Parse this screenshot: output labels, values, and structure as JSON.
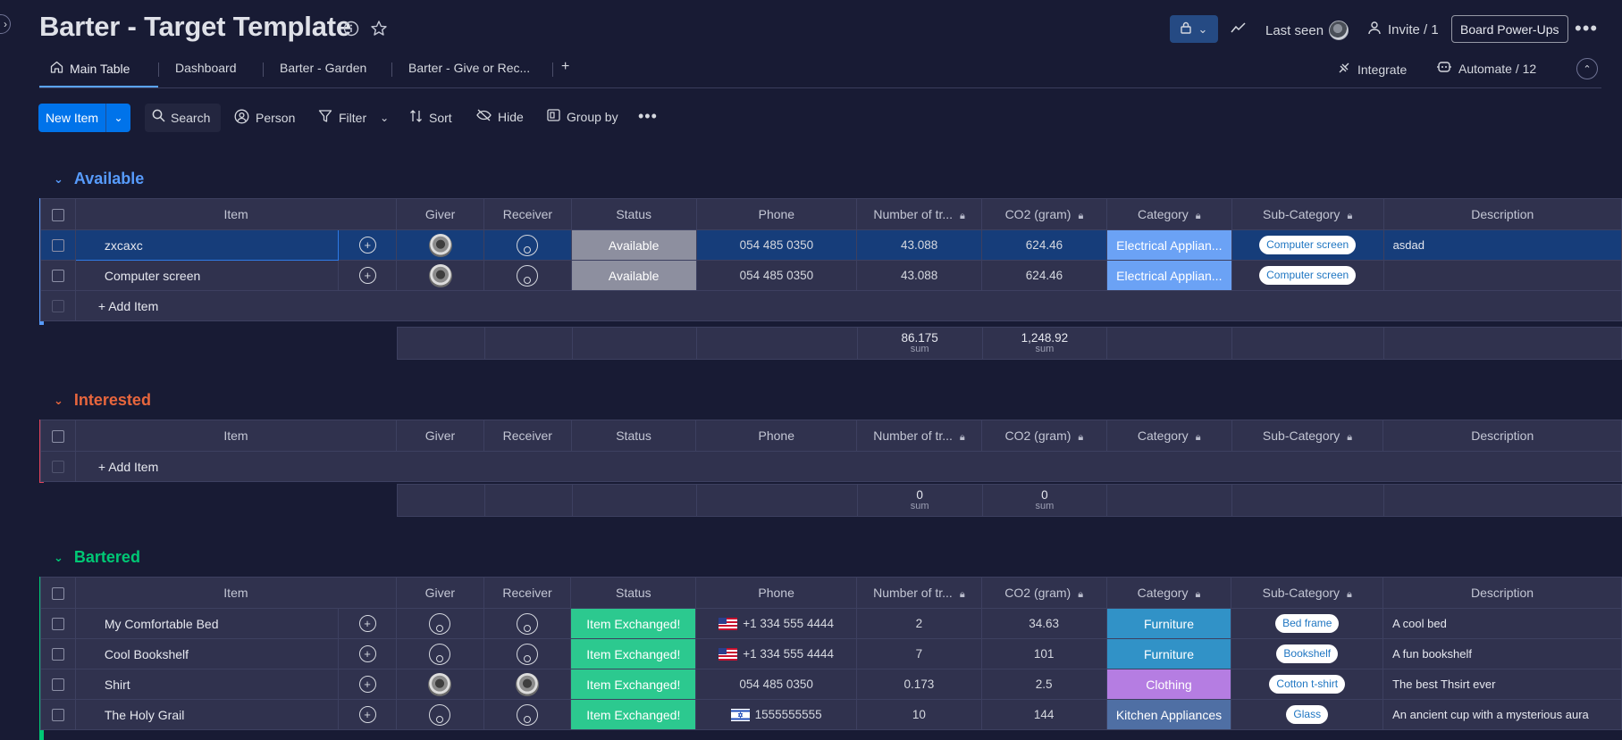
{
  "board": {
    "title": "Barter - Target Template",
    "last_seen_label": "Last seen",
    "invite_label": "Invite / 1",
    "powerups_label": "Board Power-Ups"
  },
  "tabs": [
    {
      "label": "Main Table"
    },
    {
      "label": "Dashboard"
    },
    {
      "label": "Barter - Garden"
    },
    {
      "label": "Barter - Give or Rec..."
    },
    {
      "label": "+"
    }
  ],
  "tab_actions": {
    "integrate": "Integrate",
    "automate": "Automate / 12"
  },
  "toolbar": {
    "new_item": "New Item",
    "search": "Search",
    "person": "Person",
    "filter": "Filter",
    "sort": "Sort",
    "hide": "Hide",
    "group_by": "Group by"
  },
  "columns": [
    "Item",
    "Giver",
    "Receiver",
    "Status",
    "Phone",
    "Number of tr...",
    "CO2 (gram)",
    "Category",
    "Sub-Category",
    "Description"
  ],
  "add_item_label": "+ Add Item",
  "sum_label": "sum",
  "colors": {
    "available_group": "#579bfc",
    "interested_group": "#e2445c",
    "bartered_group": "#00c875",
    "status_available": "#8d8f9f",
    "status_exchanged": "#2cc98f",
    "cat_electrical": "#6ba2f5",
    "cat_furniture": "#3192c7",
    "cat_clothing": "#b57de2",
    "cat_kitchen": "#4f6fa4"
  },
  "groups": [
    {
      "name": "Available",
      "rows": [
        {
          "item": "zxcaxc",
          "status": "Available",
          "phone": "054 485 0350",
          "number": "43.088",
          "co2": "624.46",
          "category": "Electrical Applian...",
          "subcategory": "Computer screen",
          "description": "asdad"
        },
        {
          "item": "Computer screen",
          "status": "Available",
          "phone": "054 485 0350",
          "number": "43.088",
          "co2": "624.46",
          "category": "Electrical Applian...",
          "subcategory": "Computer screen",
          "description": ""
        }
      ],
      "sum_number": "86.175",
      "sum_co2": "1,248.92"
    },
    {
      "name": "Interested",
      "rows": [],
      "sum_number": "0",
      "sum_co2": "0"
    },
    {
      "name": "Bartered",
      "rows": [
        {
          "item": "My Comfortable Bed",
          "status": "Item Exchanged!",
          "phone": "+1 334 555 4444",
          "number": "2",
          "co2": "34.63",
          "category": "Furniture",
          "subcategory": "Bed frame",
          "description": "A cool bed"
        },
        {
          "item": "Cool Bookshelf",
          "status": "Item Exchanged!",
          "phone": "+1 334 555 4444",
          "number": "7",
          "co2": "101",
          "category": "Furniture",
          "subcategory": "Bookshelf",
          "description": "A fun bookshelf"
        },
        {
          "item": "Shirt",
          "status": "Item Exchanged!",
          "phone": "054 485 0350",
          "number": "0.173",
          "co2": "2.5",
          "category": "Clothing",
          "subcategory": "Cotton t-shirt",
          "description": "The best Thsirt ever"
        },
        {
          "item": "The Holy Grail",
          "status": "Item Exchanged!",
          "phone": "1555555555",
          "number": "10",
          "co2": "144",
          "category": "Kitchen Appliances",
          "subcategory": "Glass",
          "description": "An ancient cup with a mysterious aura"
        }
      ]
    }
  ]
}
